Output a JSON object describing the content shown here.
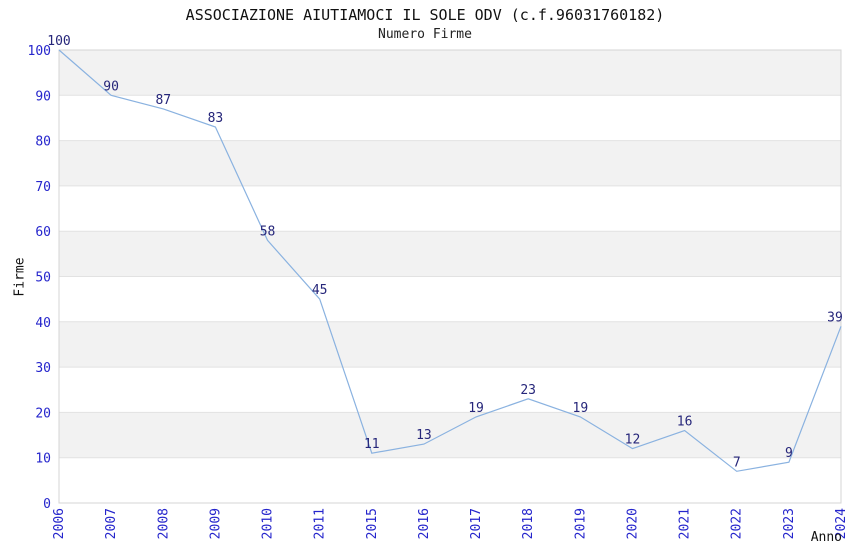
{
  "chart_data": {
    "type": "line",
    "title": "ASSOCIAZIONE AIUTIAMOCI IL SOLE ODV (c.f.96031760182)",
    "subtitle": "Numero Firme",
    "xlabel": "Anno",
    "ylabel": "Firme",
    "categories": [
      "2006",
      "2007",
      "2008",
      "2009",
      "2010",
      "2011",
      "2015",
      "2016",
      "2017",
      "2018",
      "2019",
      "2020",
      "2021",
      "2022",
      "2023",
      "2024"
    ],
    "values": [
      100,
      90,
      87,
      83,
      58,
      45,
      11,
      13,
      19,
      23,
      19,
      12,
      16,
      7,
      9,
      39
    ],
    "point_labels": [
      "100",
      "90",
      "87",
      "83",
      "58",
      "45",
      "11",
      "13",
      "19",
      "23",
      "19",
      "12",
      "16",
      "7",
      "9",
      "39"
    ],
    "ylim": [
      0,
      100
    ],
    "ytick_step": 10,
    "ytick_labels": [
      "0",
      "10",
      "20",
      "30",
      "40",
      "50",
      "60",
      "70",
      "80",
      "90",
      "100"
    ],
    "grid": "horizontal alternating bands",
    "legend": "none",
    "x_tick_rotation": -90,
    "colors": {
      "line": "#8ab2e0",
      "tick_labels": "#2525cc",
      "point_labels": "#26267a",
      "band_fill": "#f2f2f2",
      "gridline": "#e2e2e2",
      "plot_border": "#d4d4d4",
      "title_text": "#111111",
      "background": "#ffffff"
    }
  }
}
